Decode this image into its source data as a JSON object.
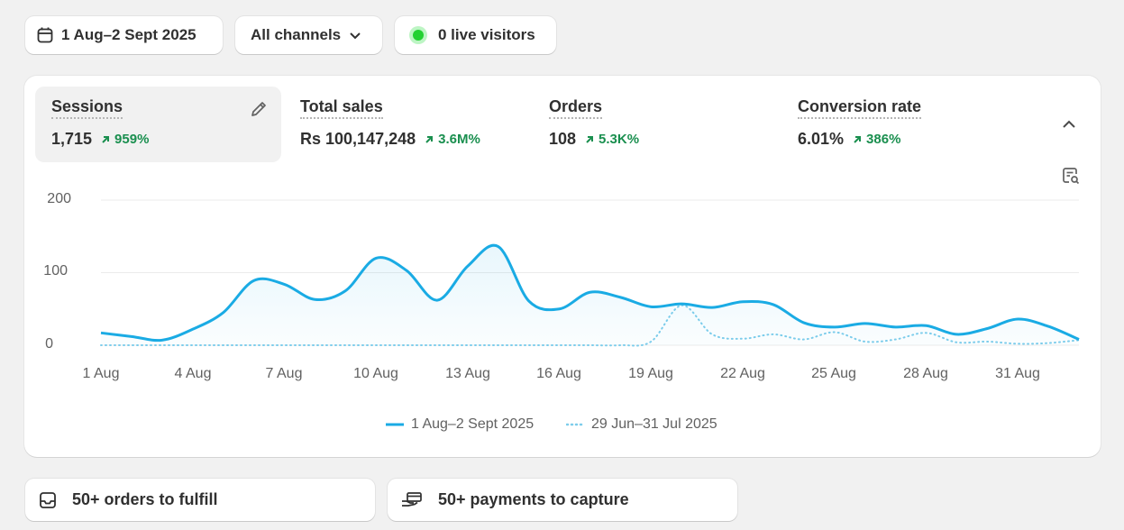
{
  "filters": {
    "date_range": "1 Aug–2 Sept 2025",
    "channels": "All channels",
    "live_visitors": "0 live visitors"
  },
  "metrics": [
    {
      "label": "Sessions",
      "value": "1,715",
      "delta": "959%"
    },
    {
      "label": "Total sales",
      "value": "Rs 100,147,248",
      "delta": "3.6M%"
    },
    {
      "label": "Orders",
      "value": "108",
      "delta": "5.3K%"
    },
    {
      "label": "Conversion rate",
      "value": "6.01%",
      "delta": "386%"
    }
  ],
  "colors": {
    "current": "#1aabe4",
    "previous": "#7ecdeb",
    "positive": "#1a8f4f",
    "live": "#23d132"
  },
  "chart_data": {
    "type": "line",
    "ylim": [
      0,
      200
    ],
    "y_ticks": [
      "200",
      "100",
      "0"
    ],
    "x_tick_labels": [
      "1 Aug",
      "4 Aug",
      "7 Aug",
      "10 Aug",
      "13 Aug",
      "16 Aug",
      "19 Aug",
      "22 Aug",
      "25 Aug",
      "28 Aug",
      "31 Aug"
    ],
    "x_days": [
      "1 Aug",
      "2 Aug",
      "3 Aug",
      "4 Aug",
      "5 Aug",
      "6 Aug",
      "7 Aug",
      "8 Aug",
      "9 Aug",
      "10 Aug",
      "11 Aug",
      "12 Aug",
      "13 Aug",
      "14 Aug",
      "15 Aug",
      "16 Aug",
      "17 Aug",
      "18 Aug",
      "19 Aug",
      "20 Aug",
      "21 Aug",
      "22 Aug",
      "23 Aug",
      "24 Aug",
      "25 Aug",
      "26 Aug",
      "27 Aug",
      "28 Aug",
      "29 Aug",
      "30 Aug",
      "31 Aug",
      "1 Sept",
      "2 Sept"
    ],
    "series": [
      {
        "name": "1 Aug–2 Sept 2025",
        "style": "solid",
        "values": [
          17,
          12,
          7,
          22,
          45,
          89,
          84,
          63,
          75,
          120,
          103,
          62,
          109,
          136,
          61,
          50,
          73,
          66,
          53,
          57,
          52,
          60,
          56,
          31,
          25,
          30,
          25,
          27,
          15,
          23,
          36,
          26,
          8
        ]
      },
      {
        "name": "29 Jun–31 Jul 2025",
        "style": "dotted",
        "values": [
          0,
          0,
          0,
          0,
          0,
          0,
          0,
          0,
          0,
          0,
          0,
          0,
          0,
          0,
          0,
          0,
          0,
          0,
          5,
          55,
          15,
          9,
          15,
          8,
          18,
          5,
          8,
          17,
          4,
          5,
          2,
          3,
          7
        ]
      }
    ]
  },
  "actions": [
    {
      "label": "50+ orders to fulfill"
    },
    {
      "label": "50+ payments to capture"
    }
  ]
}
